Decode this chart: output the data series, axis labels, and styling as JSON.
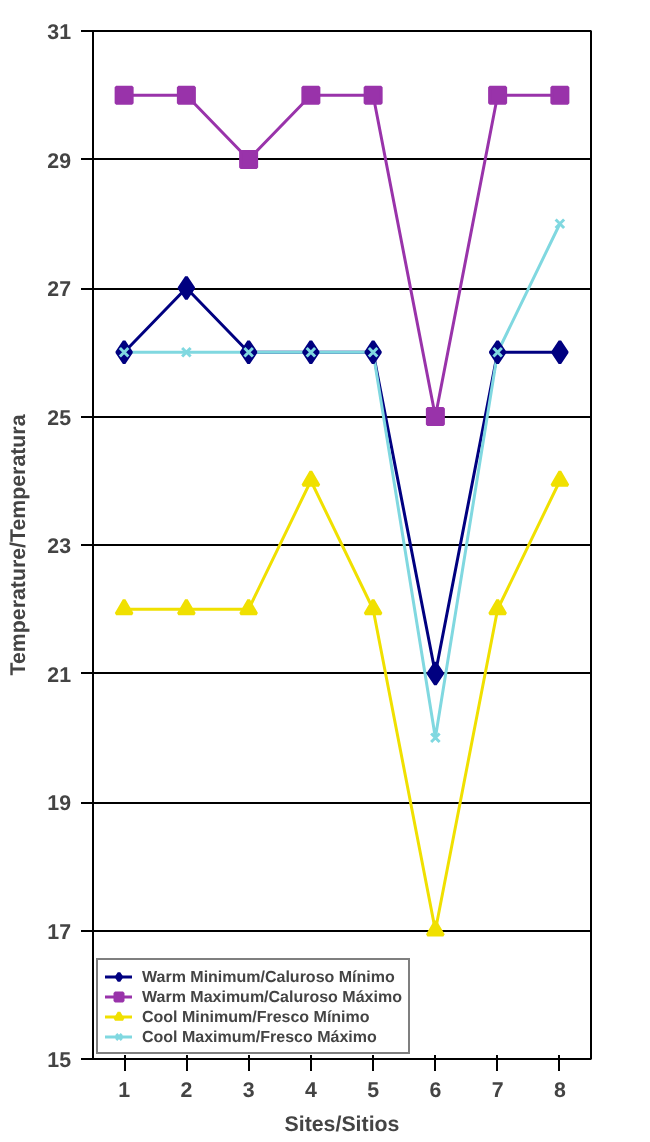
{
  "chart_data": {
    "type": "line",
    "xlabel": "Sites/Sitios",
    "ylabel": "Temperature/Temperatura",
    "categories": [
      "1",
      "2",
      "3",
      "4",
      "5",
      "6",
      "7",
      "8"
    ],
    "ylim": [
      15,
      31
    ],
    "yticks": [
      15,
      17,
      19,
      21,
      23,
      25,
      27,
      29,
      31
    ],
    "grid": "y",
    "legend": "bottom left",
    "series": [
      {
        "name": "Warm Minimum/Caluroso Mínimo",
        "color": "#000080",
        "marker": "diamond",
        "values": [
          26,
          27,
          26,
          26,
          26,
          21,
          26,
          26
        ]
      },
      {
        "name": "Warm Maximum/Caluroso Máximo",
        "color": "#9933aa",
        "marker": "square",
        "values": [
          30,
          30,
          29,
          30,
          30,
          25,
          30,
          30
        ]
      },
      {
        "name": "Cool Minimum/Fresco Mínimo",
        "color": "#f0e000",
        "marker": "triangle",
        "values": [
          22,
          22,
          22,
          24,
          22,
          17,
          22,
          24
        ]
      },
      {
        "name": "Cool Maximum/Fresco Máximo",
        "color": "#80d8e0",
        "marker": "cross",
        "values": [
          26,
          26,
          26,
          26,
          26,
          20,
          26,
          28
        ]
      }
    ]
  }
}
